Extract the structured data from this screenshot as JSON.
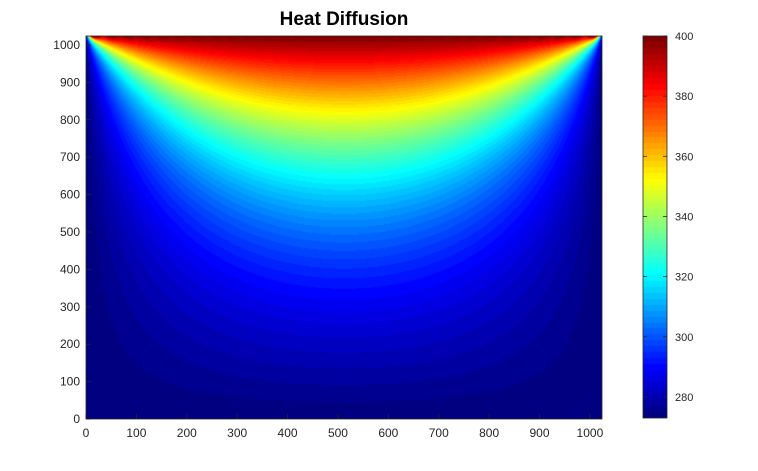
{
  "chart_data": {
    "type": "heatmap",
    "title": "Heat Diffusion",
    "xlabel": "",
    "ylabel": "",
    "xlim": [
      0,
      1024
    ],
    "ylim": [
      0,
      1024
    ],
    "x_ticks": [
      0,
      100,
      200,
      300,
      400,
      500,
      600,
      700,
      800,
      900,
      1000
    ],
    "y_ticks": [
      0,
      100,
      200,
      300,
      400,
      500,
      600,
      700,
      800,
      900,
      1000
    ],
    "colorbar": {
      "range": [
        273,
        400
      ],
      "ticks": [
        280,
        300,
        320,
        340,
        360,
        380,
        400
      ],
      "colormap": "jet",
      "levels": 64
    },
    "field": {
      "description_key": "steady-state heat equation on square plate",
      "top_boundary_value": 400,
      "other_boundaries_value": 273
    },
    "grid": false,
    "colors": {
      "axis": "#262626",
      "background": "#ffffff"
    }
  }
}
